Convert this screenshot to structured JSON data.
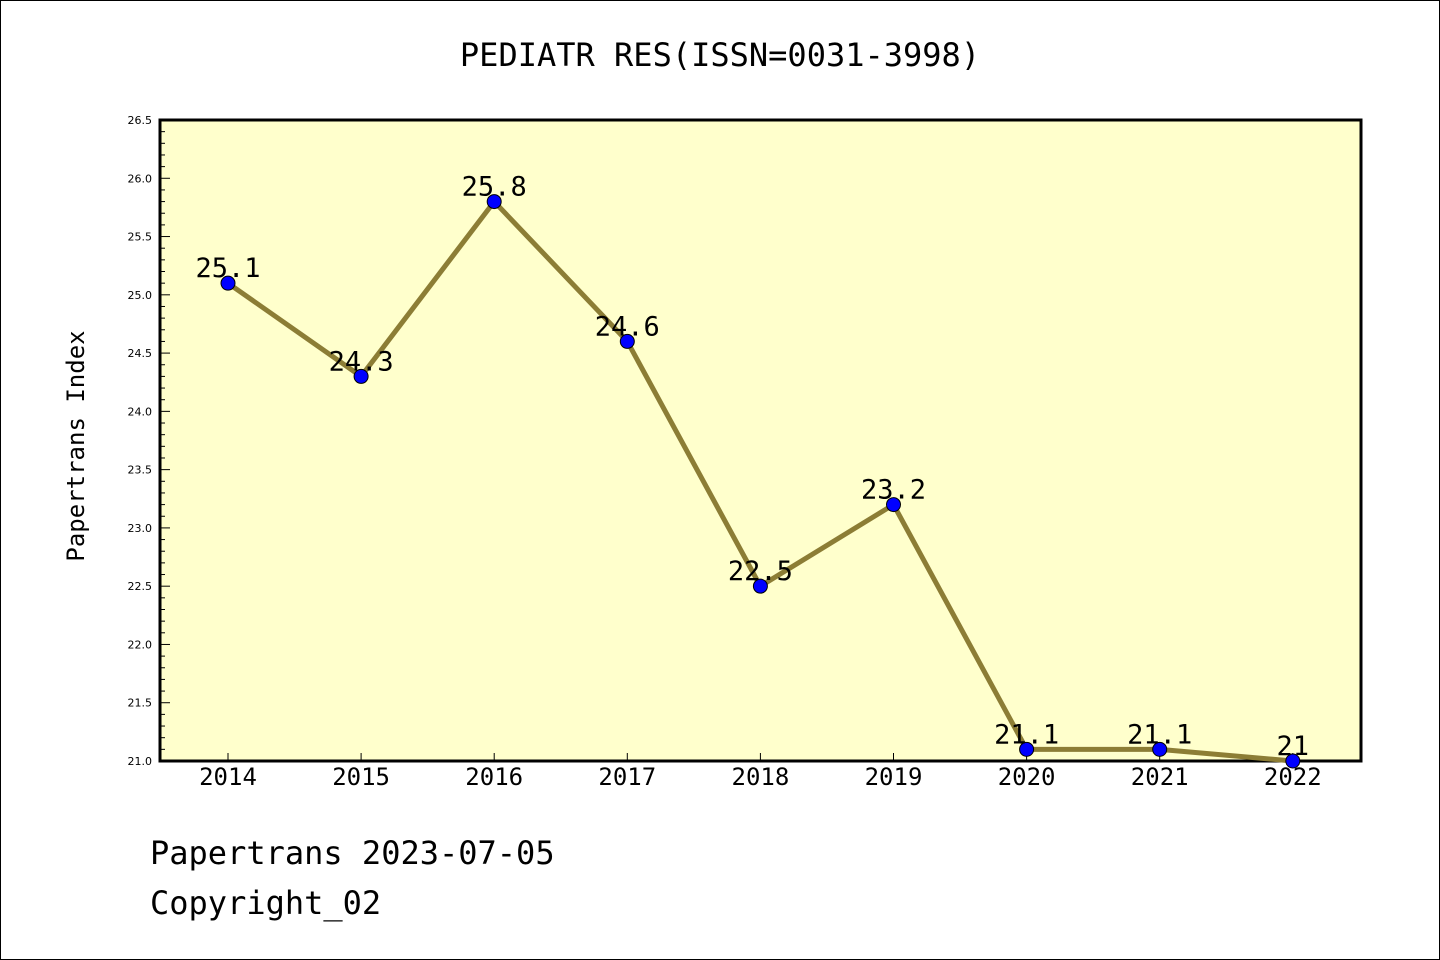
{
  "chart_data": {
    "type": "line",
    "title": "PEDIATR RES(ISSN=0031-3998)",
    "xlabel": "",
    "ylabel": "Papertrans Index",
    "categories": [
      "2014",
      "2015",
      "2016",
      "2017",
      "2018",
      "2019",
      "2020",
      "2021",
      "2022"
    ],
    "values": [
      25.1,
      24.3,
      25.8,
      24.6,
      22.5,
      23.2,
      21.1,
      21.1,
      21.0
    ],
    "data_labels": [
      "25.1",
      "24.3",
      "25.8",
      "24.6",
      "22.5",
      "23.2",
      "21.1",
      "21.1",
      "21"
    ],
    "ylim": [
      21.0,
      26.5
    ],
    "yticks": [
      "21.0",
      "21.5",
      "22.0",
      "22.5",
      "23.0",
      "23.5",
      "24.0",
      "24.5",
      "25.0",
      "25.5",
      "26.0",
      "26.5"
    ],
    "grid": false,
    "legend": "none",
    "colors": {
      "line": "#8c7d35",
      "marker": "#0000ff",
      "plot_background": "#ffffcc"
    }
  },
  "footer": {
    "date": "Papertrans 2023-07-05",
    "copyright": "Copyright_02"
  }
}
